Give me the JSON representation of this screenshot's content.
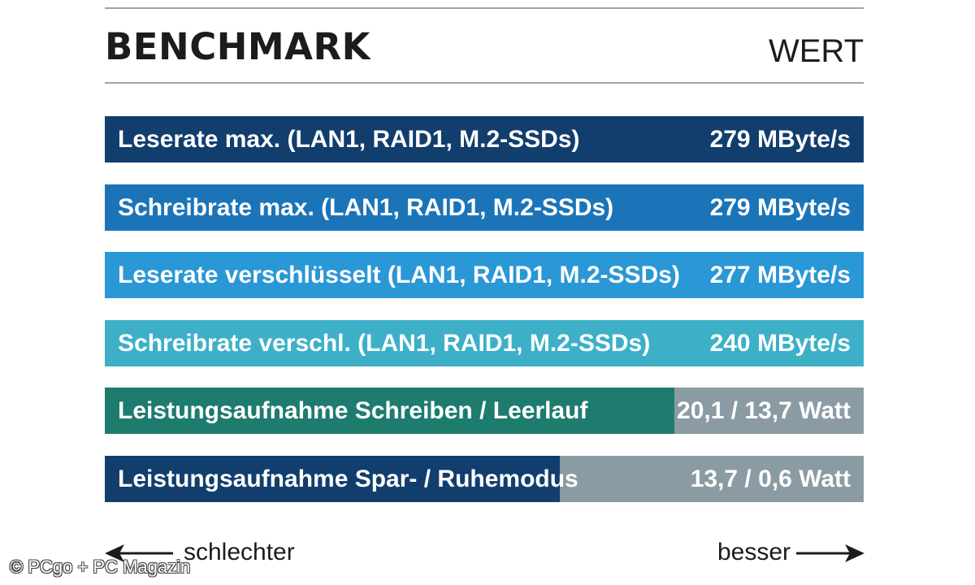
{
  "header": {
    "title": "BENCHMARK",
    "value_header": "WERT"
  },
  "chart_data": {
    "type": "bar",
    "categories": [
      "Leserate max. (LAN1, RAID1, M.2-SSDs)",
      "Schreibrate max. (LAN1, RAID1, M.2-SSDs)",
      "Leserate verschlüsselt (LAN1, RAID1, M.2-SSDs)",
      "Schreibrate verschl. (LAN1, RAID1, M.2-SSDs)",
      "Leistungsaufnahme Schreiben / Leerlauf",
      "Leistungsaufnahme Spar- / Ruhemodus"
    ],
    "value_labels": [
      "279 MByte/s",
      "279 MByte/s",
      "277 MByte/s",
      "240 MByte/s",
      "20,1 / 13,7 Watt",
      "13,7 / 0,6 Watt"
    ],
    "bar_fraction": [
      1.0,
      1.0,
      1.0,
      1.0,
      0.75,
      0.6
    ],
    "colors": [
      "#123e6e",
      "#1b74b8",
      "#2a97d6",
      "#3db0c8",
      "#1d7c6e",
      "#123e6e"
    ],
    "track_color": "#8b9ba3"
  },
  "axis": {
    "worse": "schlechter",
    "better": "besser"
  },
  "credit": "© PCgo + PC Magazin"
}
